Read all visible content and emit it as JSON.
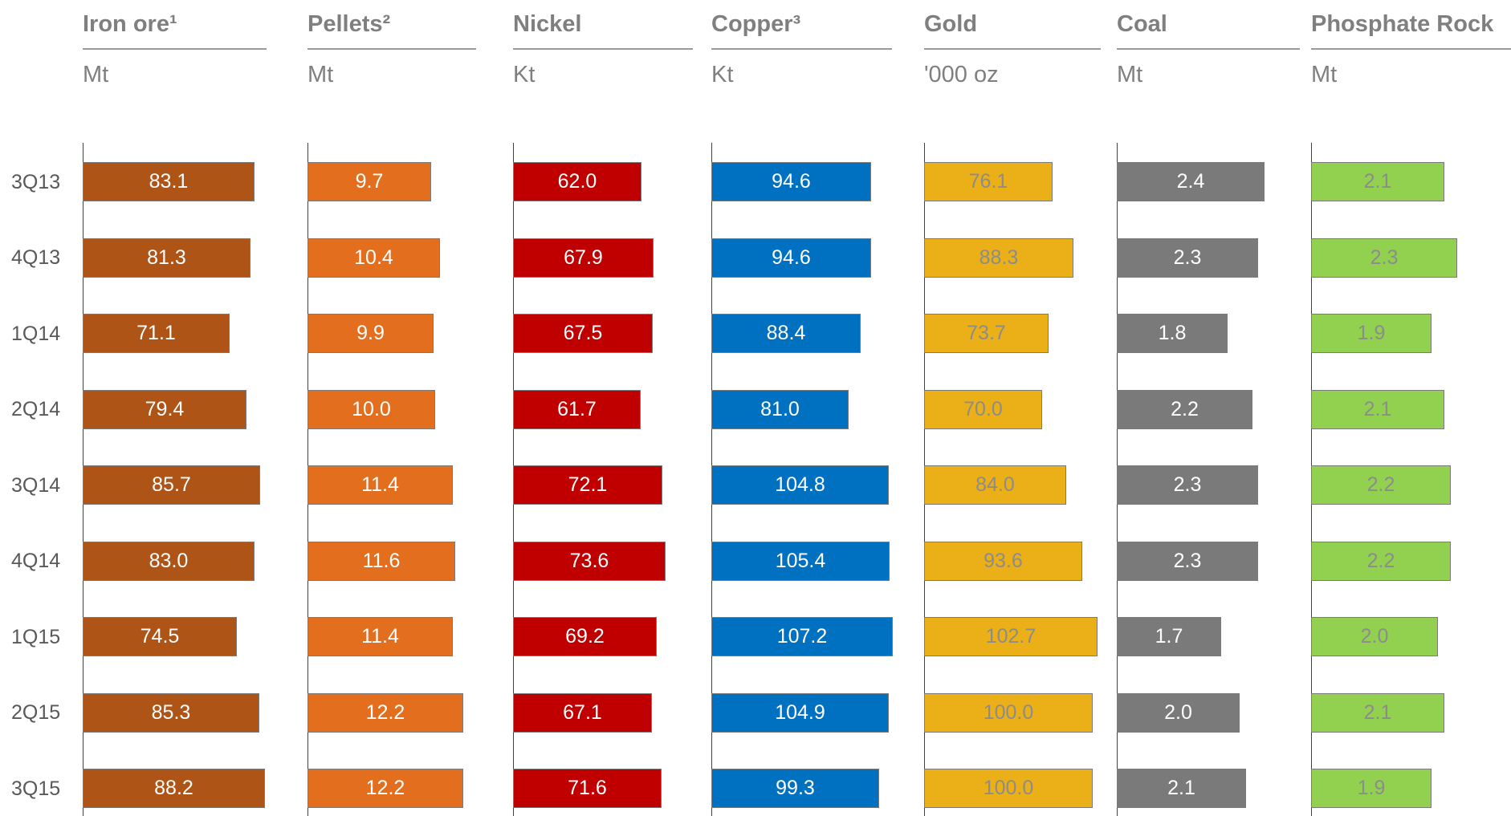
{
  "chart_data": {
    "type": "bar",
    "orientation": "horizontal",
    "categories": [
      "3Q13",
      "4Q13",
      "1Q14",
      "2Q14",
      "3Q14",
      "4Q14",
      "1Q15",
      "2Q15",
      "3Q15"
    ],
    "grid": false,
    "legend": "none",
    "panels": [
      {
        "title": "Iron ore¹",
        "unit": "Mt",
        "color": "#ae5417",
        "label_color": "#ffffff",
        "values": [
          83.1,
          81.3,
          71.1,
          79.4,
          85.7,
          83.0,
          74.5,
          85.3,
          88.2
        ],
        "labels": [
          "83.1",
          "81.3",
          "71.1",
          "79.4",
          "85.7",
          "83.0",
          "74.5",
          "85.3",
          "88.2"
        ],
        "xlim": [
          0,
          88.2
        ]
      },
      {
        "title": "Pellets²",
        "unit": "Mt",
        "color": "#e36f1e",
        "label_color": "#ffffff",
        "values": [
          9.7,
          10.4,
          9.9,
          10.0,
          11.4,
          11.6,
          11.4,
          12.2,
          12.2
        ],
        "labels": [
          "9.7",
          "10.4",
          "9.9",
          "10.0",
          "11.4",
          "11.6",
          "11.4",
          "12.2",
          "12.2"
        ],
        "xlim": [
          0,
          12.2
        ]
      },
      {
        "title": "Nickel",
        "unit": "Kt",
        "color": "#c00000",
        "label_color": "#ffffff",
        "values": [
          62.0,
          67.9,
          67.5,
          61.7,
          72.1,
          73.6,
          69.2,
          67.1,
          71.6
        ],
        "labels": [
          "62.0",
          "67.9",
          "67.5",
          "61.7",
          "72.1",
          "73.6",
          "69.2",
          "67.1",
          "71.6"
        ],
        "xlim": [
          0,
          73.6
        ]
      },
      {
        "title": "Copper³",
        "unit": "Kt",
        "color": "#0070c0",
        "label_color": "#ffffff",
        "values": [
          94.6,
          94.6,
          88.4,
          81.0,
          104.8,
          105.4,
          107.2,
          104.9,
          99.3
        ],
        "labels": [
          "94.6",
          "94.6",
          "88.4",
          "81.0",
          "104.8",
          "105.4",
          "107.2",
          "104.9",
          "99.3"
        ],
        "xlim": [
          0,
          107.2
        ]
      },
      {
        "title": "Gold",
        "unit": "'000 oz",
        "color": "#ebb017",
        "label_color": "#8c8c8c",
        "values": [
          76.1,
          88.3,
          73.7,
          70.0,
          84.0,
          93.6,
          102.7,
          100.0,
          100.0
        ],
        "labels": [
          "76.1",
          "88.3",
          "73.7",
          "70.0",
          "84.0",
          "93.6",
          "102.7",
          "100.0",
          "100.0"
        ],
        "xlim": [
          0,
          102.7
        ]
      },
      {
        "title": "Coal",
        "unit": "Mt",
        "color": "#7a7a7a",
        "label_color": "#ffffff",
        "values": [
          2.4,
          2.3,
          1.8,
          2.2,
          2.3,
          2.3,
          1.7,
          2.0,
          2.1
        ],
        "labels": [
          "2.4",
          "2.3",
          "1.8",
          "2.2",
          "2.3",
          "2.3",
          "1.7",
          "2.0",
          "2.1"
        ],
        "xlim": [
          0,
          2.4
        ]
      },
      {
        "title": "Phosphate Rock",
        "unit": "Mt",
        "color": "#92d050",
        "label_color": "#8c8c8c",
        "values": [
          2.1,
          2.3,
          1.9,
          2.1,
          2.2,
          2.2,
          2.0,
          2.1,
          1.9
        ],
        "labels": [
          "2.1",
          "2.3",
          "1.9",
          "2.1",
          "2.2",
          "2.2",
          "2.0",
          "2.1",
          "1.9"
        ],
        "xlim": [
          0,
          2.3
        ]
      }
    ]
  }
}
